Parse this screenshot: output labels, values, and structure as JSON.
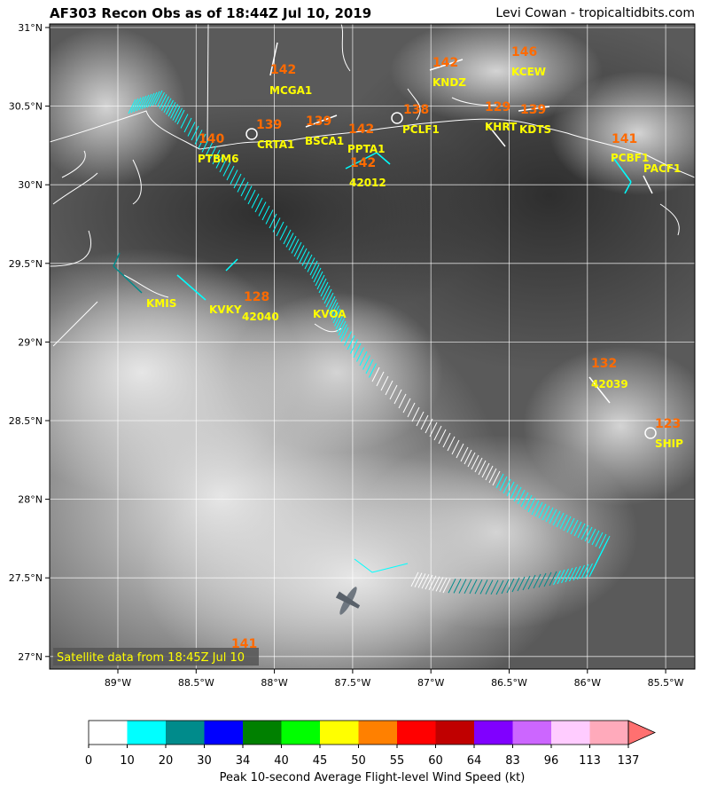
{
  "header": {
    "title": "AF303 Recon Obs as of 18:44Z Jul 10, 2019",
    "credit": "Levi Cowan - tropicaltidbits.com"
  },
  "map": {
    "lon_ticks": [
      "89°W",
      "88.5°W",
      "88°W",
      "87.5°W",
      "87°W",
      "86.5°W",
      "86°W",
      "85.5°W"
    ],
    "lat_ticks": [
      "31°N",
      "30.5°N",
      "30°N",
      "29.5°N",
      "29°N",
      "28.5°N",
      "28°N",
      "27.5°N",
      "27°N"
    ],
    "sat_note": "Satellite data from 18:45Z Jul 10"
  },
  "stations": [
    {
      "id": "MCGA1",
      "val": "142"
    },
    {
      "id": "CRTA1",
      "val": "139"
    },
    {
      "id": "BSCA1",
      "val": "139"
    },
    {
      "id": "PPTA1",
      "val": "142"
    },
    {
      "id": "42012",
      "val": "142"
    },
    {
      "id": "PCLF1",
      "val": "138"
    },
    {
      "id": "KNDZ",
      "val": "142"
    },
    {
      "id": "KCEW",
      "val": "146"
    },
    {
      "id": "KHRT",
      "val": "129"
    },
    {
      "id": "KDTS",
      "val": "139"
    },
    {
      "id": "PCBF1",
      "val": "141"
    },
    {
      "id": "PACF1",
      "val": ""
    },
    {
      "id": "PTBM6",
      "val": "140"
    },
    {
      "id": "KMIS",
      "val": ""
    },
    {
      "id": "KVKY",
      "val": ""
    },
    {
      "id": "42040",
      "val": "128"
    },
    {
      "id": "KVOA",
      "val": ""
    },
    {
      "id": "42039",
      "val": "132"
    },
    {
      "id": "SHIP",
      "val": "123"
    },
    {
      "id": "",
      "val": "141"
    }
  ],
  "colorbar": {
    "label": "Peak 10-second Average Flight-level Wind Speed (kt)",
    "ticks": [
      "0",
      "10",
      "20",
      "30",
      "34",
      "40",
      "45",
      "50",
      "55",
      "60",
      "64",
      "83",
      "96",
      "113",
      "137"
    ],
    "colors": [
      "#ffffff",
      "#00ffff",
      "#008b8b",
      "#0000ff",
      "#008000",
      "#00ff00",
      "#ffff00",
      "#ff8000",
      "#ff0000",
      "#c00000",
      "#8000ff",
      "#cc66ff",
      "#ffccff",
      "#ffaabb",
      "#ff7070"
    ]
  }
}
